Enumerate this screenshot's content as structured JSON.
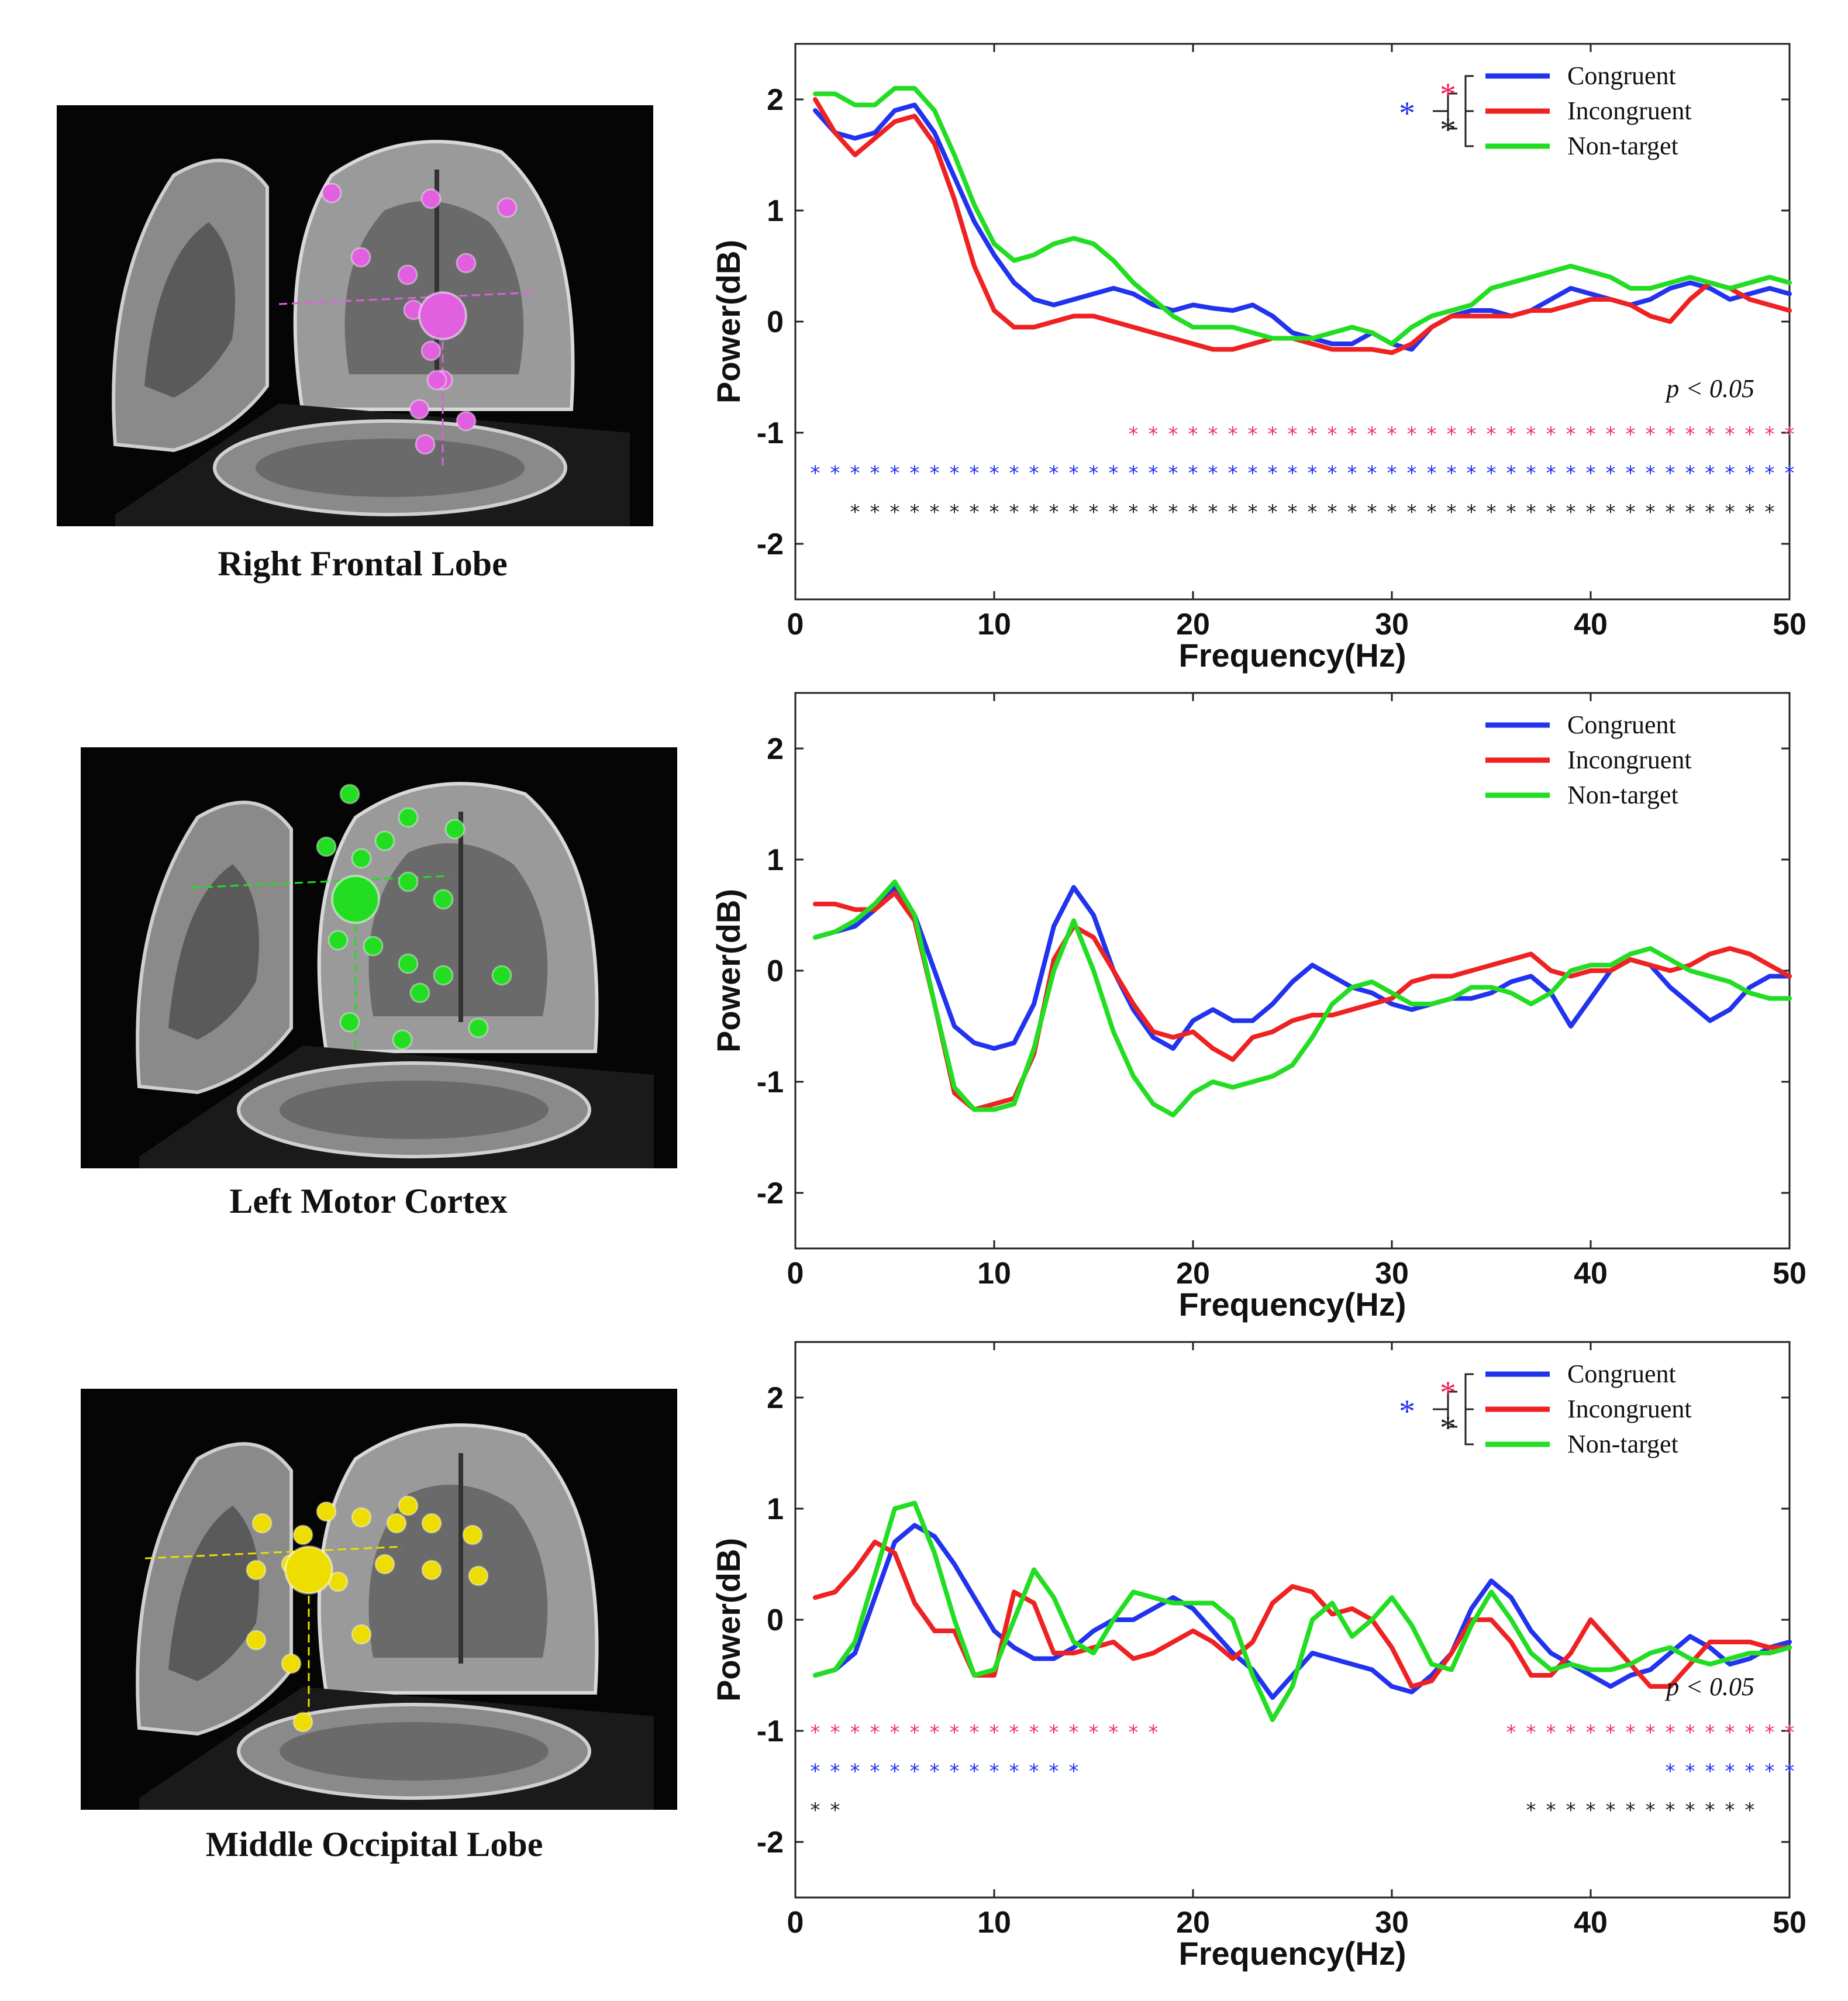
{
  "figure": {
    "panels": [
      {
        "caption": "Right Frontal Lobe",
        "dipole_color": "#e060e0"
      },
      {
        "caption": "Left Motor Cortex",
        "dipole_color": "#22dd22"
      },
      {
        "caption": "Middle Occipital Lobe",
        "dipole_color": "#eedd00"
      }
    ]
  },
  "chart_data": [
    {
      "type": "line",
      "xlabel": "Frequency(Hz)",
      "ylabel": "Power(dB)",
      "xlim": [
        0,
        50
      ],
      "ylim": [
        -2.5,
        2.5
      ],
      "xticks": [
        0,
        10,
        20,
        30,
        40,
        50
      ],
      "yticks": [
        2,
        1,
        0,
        -1,
        -2
      ],
      "x": [
        1,
        2,
        3,
        4,
        5,
        6,
        7,
        8,
        9,
        10,
        11,
        12,
        13,
        14,
        15,
        16,
        17,
        18,
        19,
        20,
        21,
        22,
        23,
        24,
        25,
        26,
        27,
        28,
        29,
        30,
        31,
        32,
        33,
        34,
        35,
        36,
        37,
        38,
        39,
        40,
        41,
        42,
        43,
        44,
        45,
        46,
        47,
        48,
        49,
        50
      ],
      "series": [
        {
          "name": "Congruent",
          "color": "#2233ee",
          "values": [
            1.9,
            1.7,
            1.65,
            1.7,
            1.9,
            1.95,
            1.7,
            1.3,
            0.9,
            0.6,
            0.35,
            0.2,
            0.15,
            0.2,
            0.25,
            0.3,
            0.25,
            0.15,
            0.1,
            0.15,
            0.12,
            0.1,
            0.15,
            0.05,
            -0.1,
            -0.15,
            -0.2,
            -0.2,
            -0.1,
            -0.2,
            -0.25,
            -0.05,
            0.05,
            0.1,
            0.1,
            0.05,
            0.1,
            0.2,
            0.3,
            0.25,
            0.2,
            0.15,
            0.2,
            0.3,
            0.35,
            0.3,
            0.2,
            0.25,
            0.3,
            0.25
          ]
        },
        {
          "name": "Incongruent",
          "color": "#ee2222",
          "values": [
            2.0,
            1.7,
            1.5,
            1.65,
            1.8,
            1.85,
            1.6,
            1.1,
            0.5,
            0.1,
            -0.05,
            -0.05,
            0.0,
            0.05,
            0.05,
            0.0,
            -0.05,
            -0.1,
            -0.15,
            -0.2,
            -0.25,
            -0.25,
            -0.2,
            -0.15,
            -0.15,
            -0.2,
            -0.25,
            -0.25,
            -0.25,
            -0.28,
            -0.2,
            -0.05,
            0.05,
            0.05,
            0.05,
            0.05,
            0.1,
            0.1,
            0.15,
            0.2,
            0.2,
            0.15,
            0.05,
            0.0,
            0.2,
            0.35,
            0.3,
            0.2,
            0.15,
            0.1
          ]
        },
        {
          "name": "Non-target",
          "color": "#22dd22",
          "values": [
            2.05,
            2.05,
            1.95,
            1.95,
            2.1,
            2.1,
            1.9,
            1.5,
            1.05,
            0.7,
            0.55,
            0.6,
            0.7,
            0.75,
            0.7,
            0.55,
            0.35,
            0.2,
            0.05,
            -0.05,
            -0.05,
            -0.05,
            -0.1,
            -0.15,
            -0.15,
            -0.15,
            -0.1,
            -0.05,
            -0.1,
            -0.2,
            -0.05,
            0.05,
            0.1,
            0.15,
            0.3,
            0.35,
            0.4,
            0.45,
            0.5,
            0.45,
            0.4,
            0.3,
            0.3,
            0.35,
            0.4,
            0.35,
            0.3,
            0.35,
            0.4,
            0.35
          ]
        }
      ],
      "legend": {
        "position": "top-right",
        "entries": [
          "Congruent",
          "Incongruent",
          "Non-target"
        ],
        "significance_brackets": true
      },
      "significance_label": "p < 0.05",
      "significance_rows": [
        {
          "color": "#ee3366",
          "y": -1.0,
          "from": 17,
          "to": 50
        },
        {
          "color": "#2233ee",
          "y": -1.35,
          "from": 1,
          "to": 50
        },
        {
          "color": "#222222",
          "y": -1.7,
          "from": 3,
          "to": 49
        }
      ]
    },
    {
      "type": "line",
      "xlabel": "Frequency(Hz)",
      "ylabel": "Power(dB)",
      "xlim": [
        0,
        50
      ],
      "ylim": [
        -2.5,
        2.5
      ],
      "xticks": [
        0,
        10,
        20,
        30,
        40,
        50
      ],
      "yticks": [
        2,
        1,
        0,
        -1,
        -2
      ],
      "x": [
        1,
        2,
        3,
        4,
        5,
        6,
        7,
        8,
        9,
        10,
        11,
        12,
        13,
        14,
        15,
        16,
        17,
        18,
        19,
        20,
        21,
        22,
        23,
        24,
        25,
        26,
        27,
        28,
        29,
        30,
        31,
        32,
        33,
        34,
        35,
        36,
        37,
        38,
        39,
        40,
        41,
        42,
        43,
        44,
        45,
        46,
        47,
        48,
        49,
        50
      ],
      "series": [
        {
          "name": "Congruent",
          "color": "#2233ee",
          "values": [
            0.3,
            0.35,
            0.4,
            0.55,
            0.75,
            0.5,
            0.0,
            -0.5,
            -0.65,
            -0.7,
            -0.65,
            -0.3,
            0.4,
            0.75,
            0.5,
            0.0,
            -0.35,
            -0.6,
            -0.7,
            -0.45,
            -0.35,
            -0.45,
            -0.45,
            -0.3,
            -0.1,
            0.05,
            -0.05,
            -0.15,
            -0.2,
            -0.3,
            -0.35,
            -0.3,
            -0.25,
            -0.25,
            -0.2,
            -0.1,
            -0.05,
            -0.2,
            -0.5,
            -0.25,
            0.0,
            0.1,
            0.05,
            -0.15,
            -0.3,
            -0.45,
            -0.35,
            -0.15,
            -0.05,
            -0.05
          ]
        },
        {
          "name": "Incongruent",
          "color": "#ee2222",
          "values": [
            0.6,
            0.6,
            0.55,
            0.55,
            0.7,
            0.45,
            -0.3,
            -1.1,
            -1.25,
            -1.2,
            -1.15,
            -0.75,
            0.1,
            0.4,
            0.3,
            0.0,
            -0.3,
            -0.55,
            -0.6,
            -0.55,
            -0.7,
            -0.8,
            -0.6,
            -0.55,
            -0.45,
            -0.4,
            -0.4,
            -0.35,
            -0.3,
            -0.25,
            -0.1,
            -0.05,
            -0.05,
            0.0,
            0.05,
            0.1,
            0.15,
            0.0,
            -0.05,
            0.0,
            0.0,
            0.1,
            0.05,
            0.0,
            0.05,
            0.15,
            0.2,
            0.15,
            0.05,
            -0.05
          ]
        },
        {
          "name": "Non-target",
          "color": "#22dd22",
          "values": [
            0.3,
            0.35,
            0.45,
            0.6,
            0.8,
            0.5,
            -0.3,
            -1.05,
            -1.25,
            -1.25,
            -1.2,
            -0.7,
            0.0,
            0.45,
            0.0,
            -0.55,
            -0.95,
            -1.2,
            -1.3,
            -1.1,
            -1.0,
            -1.05,
            -1.0,
            -0.95,
            -0.85,
            -0.6,
            -0.3,
            -0.15,
            -0.1,
            -0.2,
            -0.3,
            -0.3,
            -0.25,
            -0.15,
            -0.15,
            -0.2,
            -0.3,
            -0.2,
            0.0,
            0.05,
            0.05,
            0.15,
            0.2,
            0.1,
            0.0,
            -0.05,
            -0.1,
            -0.2,
            -0.25,
            -0.25
          ]
        }
      ],
      "legend": {
        "position": "top-right",
        "entries": [
          "Congruent",
          "Incongruent",
          "Non-target"
        ],
        "significance_brackets": false
      }
    },
    {
      "type": "line",
      "xlabel": "Frequency(Hz)",
      "ylabel": "Power(dB)",
      "xlim": [
        0,
        50
      ],
      "ylim": [
        -2.5,
        2.5
      ],
      "xticks": [
        0,
        10,
        20,
        30,
        40,
        50
      ],
      "yticks": [
        2,
        1,
        0,
        -1,
        -2
      ],
      "x": [
        1,
        2,
        3,
        4,
        5,
        6,
        7,
        8,
        9,
        10,
        11,
        12,
        13,
        14,
        15,
        16,
        17,
        18,
        19,
        20,
        21,
        22,
        23,
        24,
        25,
        26,
        27,
        28,
        29,
        30,
        31,
        32,
        33,
        34,
        35,
        36,
        37,
        38,
        39,
        40,
        41,
        42,
        43,
        44,
        45,
        46,
        47,
        48,
        49,
        50
      ],
      "series": [
        {
          "name": "Congruent",
          "color": "#2233ee",
          "values": [
            -0.5,
            -0.45,
            -0.3,
            0.2,
            0.7,
            0.85,
            0.75,
            0.5,
            0.2,
            -0.1,
            -0.25,
            -0.35,
            -0.35,
            -0.25,
            -0.1,
            0.0,
            0.0,
            0.1,
            0.2,
            0.1,
            -0.1,
            -0.3,
            -0.45,
            -0.7,
            -0.5,
            -0.3,
            -0.35,
            -0.4,
            -0.45,
            -0.6,
            -0.65,
            -0.5,
            -0.3,
            0.1,
            0.35,
            0.2,
            -0.1,
            -0.3,
            -0.4,
            -0.5,
            -0.6,
            -0.5,
            -0.45,
            -0.3,
            -0.15,
            -0.25,
            -0.4,
            -0.35,
            -0.25,
            -0.2
          ]
        },
        {
          "name": "Incongruent",
          "color": "#ee2222",
          "values": [
            0.2,
            0.25,
            0.45,
            0.7,
            0.6,
            0.15,
            -0.1,
            -0.1,
            -0.5,
            -0.5,
            0.25,
            0.15,
            -0.3,
            -0.3,
            -0.25,
            -0.2,
            -0.35,
            -0.3,
            -0.2,
            -0.1,
            -0.2,
            -0.35,
            -0.2,
            0.15,
            0.3,
            0.25,
            0.05,
            0.1,
            0.0,
            -0.25,
            -0.6,
            -0.55,
            -0.3,
            0.0,
            0.0,
            -0.2,
            -0.5,
            -0.5,
            -0.3,
            0.0,
            -0.2,
            -0.4,
            -0.6,
            -0.6,
            -0.4,
            -0.2,
            -0.2,
            -0.2,
            -0.25,
            -0.25
          ]
        },
        {
          "name": "Non-target",
          "color": "#22dd22",
          "values": [
            -0.5,
            -0.45,
            -0.2,
            0.4,
            1.0,
            1.05,
            0.6,
            0.0,
            -0.5,
            -0.45,
            0.0,
            0.45,
            0.2,
            -0.2,
            -0.3,
            0.0,
            0.25,
            0.2,
            0.15,
            0.15,
            0.15,
            0.0,
            -0.5,
            -0.9,
            -0.6,
            0.0,
            0.15,
            -0.15,
            0.0,
            0.2,
            -0.05,
            -0.4,
            -0.45,
            -0.05,
            0.25,
            0.0,
            -0.3,
            -0.45,
            -0.4,
            -0.45,
            -0.45,
            -0.4,
            -0.3,
            -0.25,
            -0.35,
            -0.4,
            -0.35,
            -0.3,
            -0.3,
            -0.25
          ]
        }
      ],
      "legend": {
        "position": "top-right",
        "entries": [
          "Congruent",
          "Incongruent",
          "Non-target"
        ],
        "significance_brackets": true
      },
      "significance_label": "p < 0.05",
      "significance_rows": [
        {
          "color": "#ee3366",
          "y": -1.0,
          "from": 1,
          "to": 18
        },
        {
          "color": "#ee3366",
          "y": -1.0,
          "from": 36,
          "to": 50
        },
        {
          "color": "#2233ee",
          "y": -1.35,
          "from": 1,
          "to": 14
        },
        {
          "color": "#2233ee",
          "y": -1.35,
          "from": 44,
          "to": 50
        },
        {
          "color": "#222222",
          "y": -1.7,
          "from": 1,
          "to": 2
        },
        {
          "color": "#222222",
          "y": -1.7,
          "from": 37,
          "to": 48
        }
      ]
    }
  ]
}
